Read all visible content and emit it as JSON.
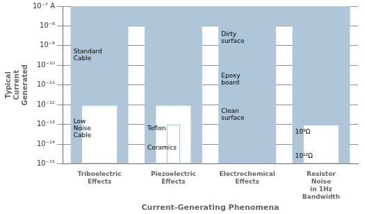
{
  "chart_data": {
    "type": "bar",
    "xlabel": "Current-Generating Phenomena",
    "ylabel": "Typical\nCurrent\nGenerated",
    "categories": [
      "Triboelectric\nEffects",
      "Piezoelectric\nEffects",
      "Electrochemical\nEffects",
      "Resistor\nNoise\nin 1Hz\nBandwidth"
    ],
    "series": [
      {
        "color": "#aec6d8",
        "values": [
          [
            1e-15,
            1e-07
          ],
          [
            1e-15,
            1e-07
          ],
          [
            1e-15,
            1e-07
          ],
          [
            1e-15,
            1e-07
          ]
        ]
      },
      {
        "color": "#ffffff",
        "values": [
          [
            1e-15,
            1e-12
          ],
          [
            1e-15,
            1e-12
          ],
          null,
          [
            1e-15,
            1e-13
          ]
        ]
      },
      {
        "color": "#ffffff",
        "values": [
          null,
          [
            1e-15,
            1e-13
          ],
          null,
          null
        ]
      }
    ],
    "band": [
      1e-08,
      1e-07
    ],
    "annotations": [
      {
        "category": "Triboelectric\nEffects",
        "y": 3.1622776601683795e-10,
        "text": "Standard\nCable"
      },
      {
        "category": "Triboelectric\nEffects",
        "y": 6.309573444801929e-14,
        "text": "Low\nNoise\nCable"
      },
      {
        "category": "Piezoelectric\nEffects",
        "y": 6.309573444801929e-14,
        "text": "Teflon"
      },
      {
        "category": "Piezoelectric\nEffects",
        "y": 6.309573444801943e-15,
        "text": "Ceramics"
      },
      {
        "category": "Electrochemical\nEffects",
        "y": 2.51188643150958e-09,
        "text": "Dirty\nsurface"
      },
      {
        "category": "Electrochemical\nEffects",
        "y": 1.9952623149688828e-11,
        "text": "Epoxy\nboard"
      },
      {
        "category": "Electrochemical\nEffects",
        "y": 3.162277660168379e-13,
        "text": "Clean\nsurface"
      },
      {
        "category": "Resistor\nNoise\nin 1Hz\nBandwidth",
        "y": 3.981071705534969e-14,
        "text": "10⁹Ω"
      },
      {
        "category": "Resistor\nNoise\nin 1Hz\nBandwidth",
        "y": 2.51188643150958e-15,
        "text": "10¹²Ω"
      }
    ],
    "log": "y",
    "ylim": [
      1e-15,
      1e-07
    ],
    "yticks": [
      {
        "value": 1e-15,
        "label": "10⁻¹⁵"
      },
      {
        "value": 1e-14,
        "label": "10⁻¹⁴"
      },
      {
        "value": 1e-13,
        "label": "10⁻¹³"
      },
      {
        "value": 1e-12,
        "label": "10⁻¹²"
      },
      {
        "value": 1e-11,
        "label": "10⁻¹¹"
      },
      {
        "value": 1e-10,
        "label": "10⁻¹⁰"
      },
      {
        "value": 1e-09,
        "label": "10⁻⁹"
      },
      {
        "value": 1e-08,
        "label": "10⁻⁸"
      },
      {
        "value": 1e-07,
        "label": "10⁻⁷ A"
      }
    ],
    "grid": true
  }
}
